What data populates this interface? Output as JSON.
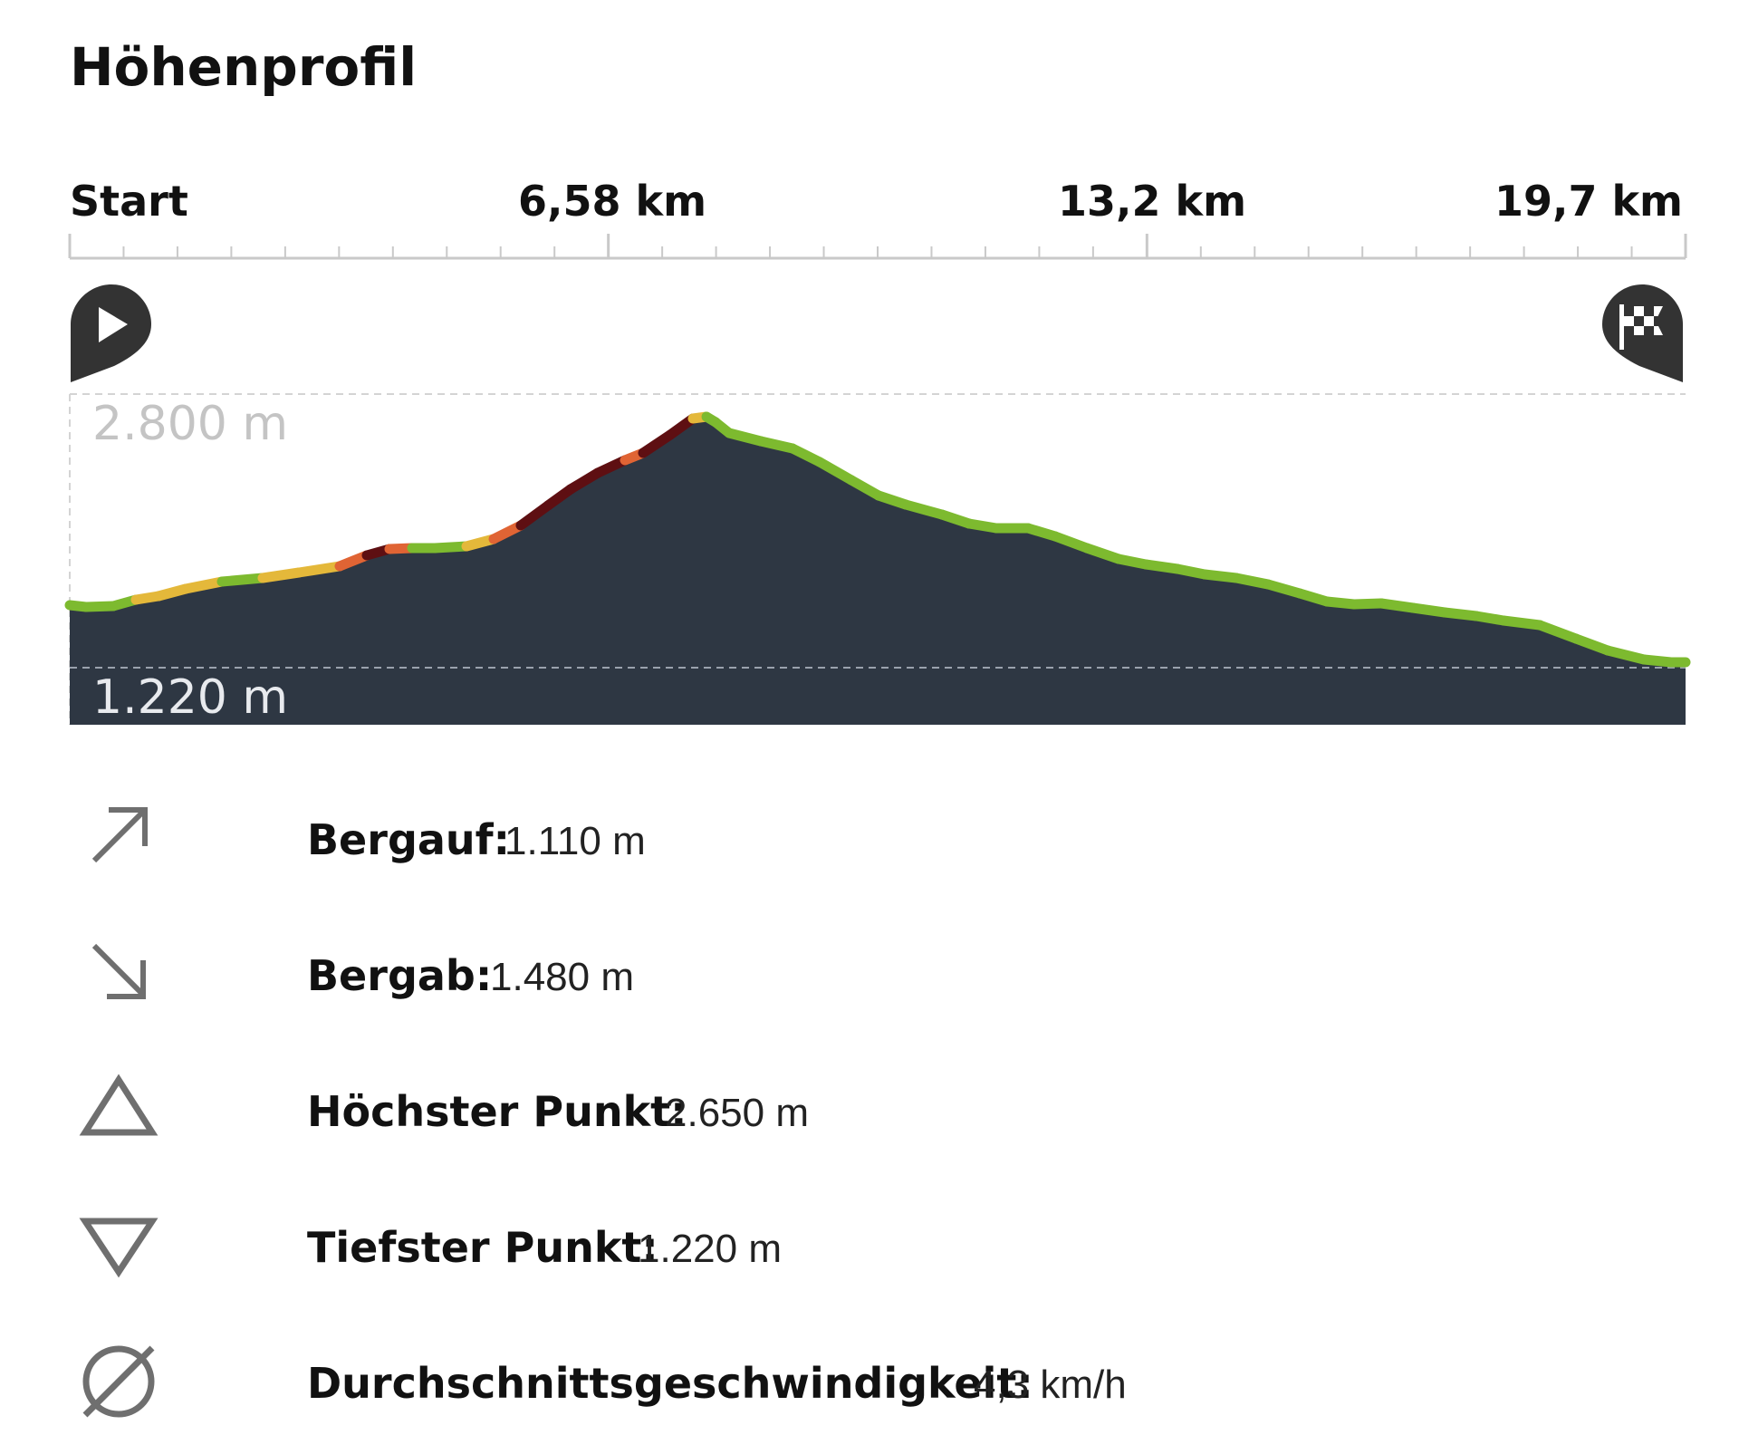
{
  "title": "Höhenprofil",
  "distance_axis": {
    "start": "Start",
    "tick_1": "6,58 km",
    "tick_2": "13,2 km",
    "tick_3": "19,7 km"
  },
  "elevation_axis": {
    "max_label": "2.800 m",
    "min_label": "1.220 m"
  },
  "markers": {
    "start_icon": "play-pin-icon",
    "finish_icon": "checkered-flag-pin-icon"
  },
  "colors": {
    "profile_fill": "#2e3743",
    "easy": "#7dba2f",
    "moderate": "#e4b83a",
    "hard": "#e06434",
    "very_hard": "#5e0f12"
  },
  "stats": [
    {
      "icon": "arrow-up-right-icon",
      "label": "Bergauf:",
      "value": "1.110 m"
    },
    {
      "icon": "arrow-down-right-icon",
      "label": "Bergab:",
      "value": "1.480 m"
    },
    {
      "icon": "triangle-up-icon",
      "label": "Höchster Punkt:",
      "value": "2.650 m"
    },
    {
      "icon": "triangle-down-icon",
      "label": "Tiefster Punkt:",
      "value": "1.220 m"
    },
    {
      "icon": "diameter-icon",
      "label": "Durchschnittsgeschwindigkeit:",
      "value": "4,3 km/h"
    }
  ]
}
